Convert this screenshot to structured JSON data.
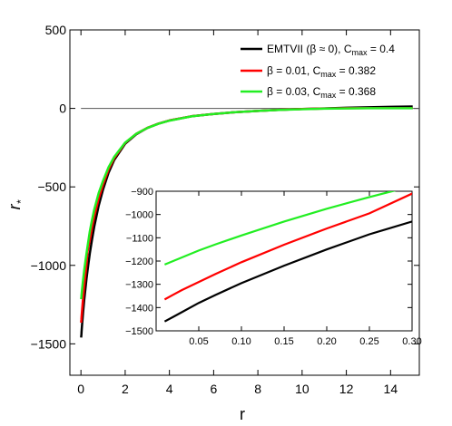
{
  "chart_data": {
    "type": "line",
    "xlabel": "r",
    "ylabel": "r",
    "ylabel_subscript": "*",
    "xlim": [
      -0.5,
      15.3
    ],
    "ylim": [
      -1700,
      500
    ],
    "xticks": [
      0,
      2,
      4,
      6,
      8,
      10,
      12,
      14
    ],
    "yticks": [
      500,
      0,
      -500,
      -1000,
      -1500
    ],
    "ytick_labels": [
      "500",
      "0",
      "-500",
      "-1000",
      "-1500"
    ],
    "grid": false,
    "legend_position": "top-right",
    "series": [
      {
        "name": "EMTVII (β ≈ 0), C",
        "name_sub": "max",
        "name_tail": " = 0.4",
        "color": "#000000",
        "x": [
          0.01,
          0.02,
          0.03,
          0.05,
          0.07,
          0.1,
          0.15,
          0.2,
          0.25,
          0.3,
          0.4,
          0.5,
          0.6,
          0.8,
          1.0,
          1.25,
          1.5,
          2.0,
          2.5,
          3.0,
          3.5,
          4.0,
          5.0,
          6.0,
          7.0,
          8.0,
          9.0,
          10.0,
          11.0,
          12.0,
          13.0,
          14.0,
          15.0
        ],
        "y": [
          -1460,
          -1440,
          -1420,
          -1380,
          -1345,
          -1295,
          -1220,
          -1150,
          -1085,
          -1030,
          -925,
          -835,
          -755,
          -620,
          -515,
          -410,
          -330,
          -225,
          -165,
          -125,
          -97,
          -77,
          -50,
          -35,
          -24,
          -16,
          -9,
          -4,
          0,
          4,
          7,
          10,
          12
        ]
      },
      {
        "name": "β = 0.01, C",
        "name_sub": "max",
        "name_tail": " = 0.382",
        "color": "#ff0000",
        "x": [
          0.01,
          0.02,
          0.03,
          0.05,
          0.07,
          0.1,
          0.15,
          0.2,
          0.25,
          0.3,
          0.4,
          0.5,
          0.6,
          0.8,
          1.0,
          1.25,
          1.5,
          2.0,
          2.5,
          3.0,
          3.5,
          4.0,
          5.0,
          6.0,
          7.0,
          8.0,
          9.0,
          10.0,
          11.0,
          12.0,
          13.0,
          14.0,
          15.0
        ],
        "y": [
          -1365,
          -1345,
          -1325,
          -1290,
          -1255,
          -1205,
          -1130,
          -1060,
          -995,
          -910,
          -840,
          -760,
          -690,
          -575,
          -485,
          -390,
          -318,
          -220,
          -162,
          -124,
          -97,
          -77,
          -50,
          -35,
          -24,
          -16,
          -9,
          -4,
          -1,
          1,
          2,
          2,
          2
        ]
      },
      {
        "name": "β = 0.03, C",
        "name_sub": "max",
        "name_tail": " = 0.368",
        "color": "#22ee22",
        "x": [
          0.01,
          0.02,
          0.03,
          0.05,
          0.07,
          0.1,
          0.15,
          0.2,
          0.25,
          0.3,
          0.4,
          0.5,
          0.6,
          0.8,
          1.0,
          1.25,
          1.5,
          2.0,
          2.5,
          3.0,
          3.5,
          4.0,
          5.0,
          6.0,
          7.0,
          8.0,
          9.0,
          10.0,
          11.0,
          12.0,
          13.0,
          14.0,
          15.0
        ],
        "y": [
          -1215,
          -1200,
          -1185,
          -1155,
          -1128,
          -1090,
          -1030,
          -975,
          -925,
          -878,
          -785,
          -710,
          -645,
          -540,
          -460,
          -375,
          -310,
          -218,
          -162,
          -125,
          -98,
          -78,
          -51,
          -35,
          -24,
          -16,
          -10,
          -5,
          -2,
          0,
          1,
          1,
          1
        ]
      }
    ],
    "inset": {
      "xlim": [
        0,
        0.3
      ],
      "ylim": [
        -1500,
        -900
      ],
      "xticks": [
        0.05,
        0.1,
        0.15,
        0.2,
        0.25,
        0.3
      ],
      "xtick_labels": [
        "0.05",
        "0.10",
        "0.15",
        "0.20",
        "0.25",
        "0.30"
      ],
      "yticks": [
        -900,
        -1000,
        -1100,
        -1200,
        -1300,
        -1400,
        -1500
      ],
      "ytick_labels": [
        "-900",
        "-1000",
        "-1100",
        "-1200",
        "-1300",
        "-1400",
        "-1500"
      ]
    }
  }
}
